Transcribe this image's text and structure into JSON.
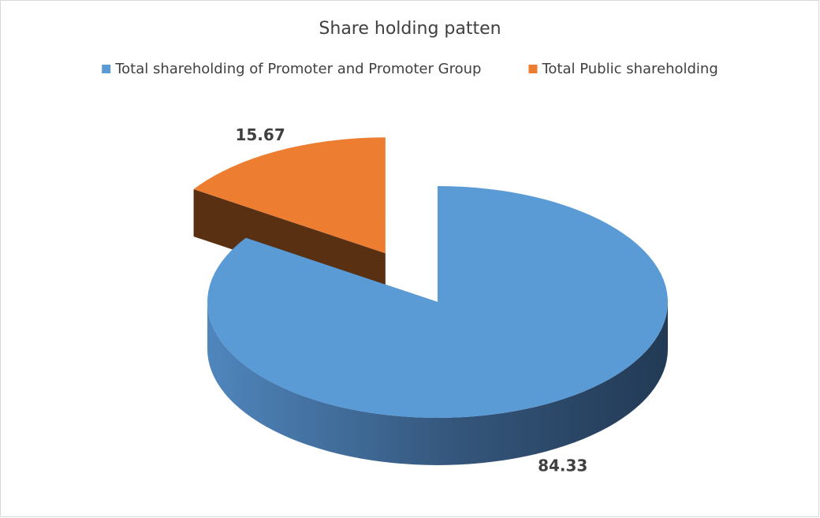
{
  "chart_data": {
    "type": "pie3d",
    "title": "Share holding patten",
    "categories": [
      "Total shareholding of Promoter and Promoter Group",
      "Total Public shareholding"
    ],
    "values": [
      84.33,
      15.67
    ],
    "colors": [
      "#5b9bd5",
      "#ed7d31"
    ],
    "legend": "top"
  }
}
